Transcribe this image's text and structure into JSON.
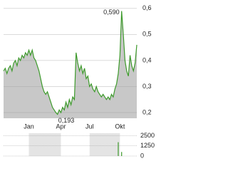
{
  "chart_data": [
    {
      "type": "line",
      "color": "#3d9a2b",
      "fill": "#c8c8c8",
      "categories": [
        null,
        null,
        null,
        null,
        null,
        null,
        null,
        null,
        null,
        null,
        null,
        null,
        null,
        null,
        null,
        "Jan",
        null,
        null,
        null,
        null,
        null,
        null,
        null,
        null,
        null,
        null,
        null,
        null,
        null,
        null,
        null,
        null,
        null,
        null,
        "Apr",
        null,
        null,
        null,
        null,
        null,
        null,
        null,
        null,
        null,
        null,
        null,
        null,
        null,
        null,
        null,
        null,
        "Jul",
        null,
        null,
        null,
        null,
        null,
        null,
        null,
        null,
        null,
        null,
        null,
        null,
        null,
        null,
        null,
        null,
        null,
        "Okt",
        null,
        null,
        null,
        null,
        null,
        null,
        null,
        null,
        null,
        null
      ],
      "values": [
        0.36,
        0.37,
        0.35,
        0.37,
        0.38,
        0.36,
        0.39,
        0.4,
        0.38,
        0.41,
        0.4,
        0.42,
        0.41,
        0.43,
        0.42,
        0.44,
        0.42,
        0.44,
        0.41,
        0.4,
        0.38,
        0.36,
        0.33,
        0.3,
        0.28,
        0.27,
        0.28,
        0.26,
        0.24,
        0.22,
        0.21,
        0.2,
        0.193,
        0.21,
        0.2,
        0.22,
        0.21,
        0.24,
        0.22,
        0.25,
        0.23,
        0.26,
        0.25,
        0.43,
        0.39,
        0.36,
        0.38,
        0.35,
        0.37,
        0.33,
        0.34,
        0.3,
        0.31,
        0.29,
        0.28,
        0.3,
        0.28,
        0.27,
        0.26,
        0.27,
        0.26,
        0.25,
        0.26,
        0.25,
        0.27,
        0.26,
        0.29,
        0.31,
        0.35,
        0.42,
        0.59,
        0.5,
        0.4,
        0.36,
        0.34,
        0.42,
        0.38,
        0.36,
        0.39,
        0.46
      ],
      "high_label": "0,590",
      "low_label": "0,193",
      "ylim": [
        0.178,
        0.616
      ],
      "yticks": [
        {
          "value": 0.2,
          "label": "0,2"
        },
        {
          "value": 0.3,
          "label": "0,3"
        },
        {
          "value": 0.4,
          "label": "0,4"
        },
        {
          "value": 0.5,
          "label": "0,5"
        },
        {
          "value": 0.6,
          "label": "0,6"
        }
      ],
      "grid": true
    },
    {
      "type": "bar",
      "color": "#3d9a2b",
      "values": [
        0,
        0,
        0,
        0,
        0,
        0,
        0,
        0,
        0,
        0,
        0,
        0,
        0,
        0,
        0,
        0,
        0,
        0,
        0,
        0,
        0,
        0,
        0,
        0,
        0,
        0,
        0,
        0,
        0,
        0,
        0,
        0,
        0,
        0,
        0,
        0,
        0,
        0,
        0,
        0,
        0,
        0,
        0,
        0,
        0,
        0,
        0,
        0,
        0,
        0,
        0,
        0,
        0,
        0,
        0,
        0,
        0,
        0,
        0,
        0,
        0,
        0,
        0,
        0,
        0,
        0,
        0,
        0,
        1700,
        0,
        500,
        0,
        0,
        0,
        0,
        0,
        0,
        0,
        0,
        0
      ],
      "ylim": [
        0,
        2800
      ],
      "yticks": [
        2500,
        1250,
        0
      ],
      "grid": true
    }
  ]
}
